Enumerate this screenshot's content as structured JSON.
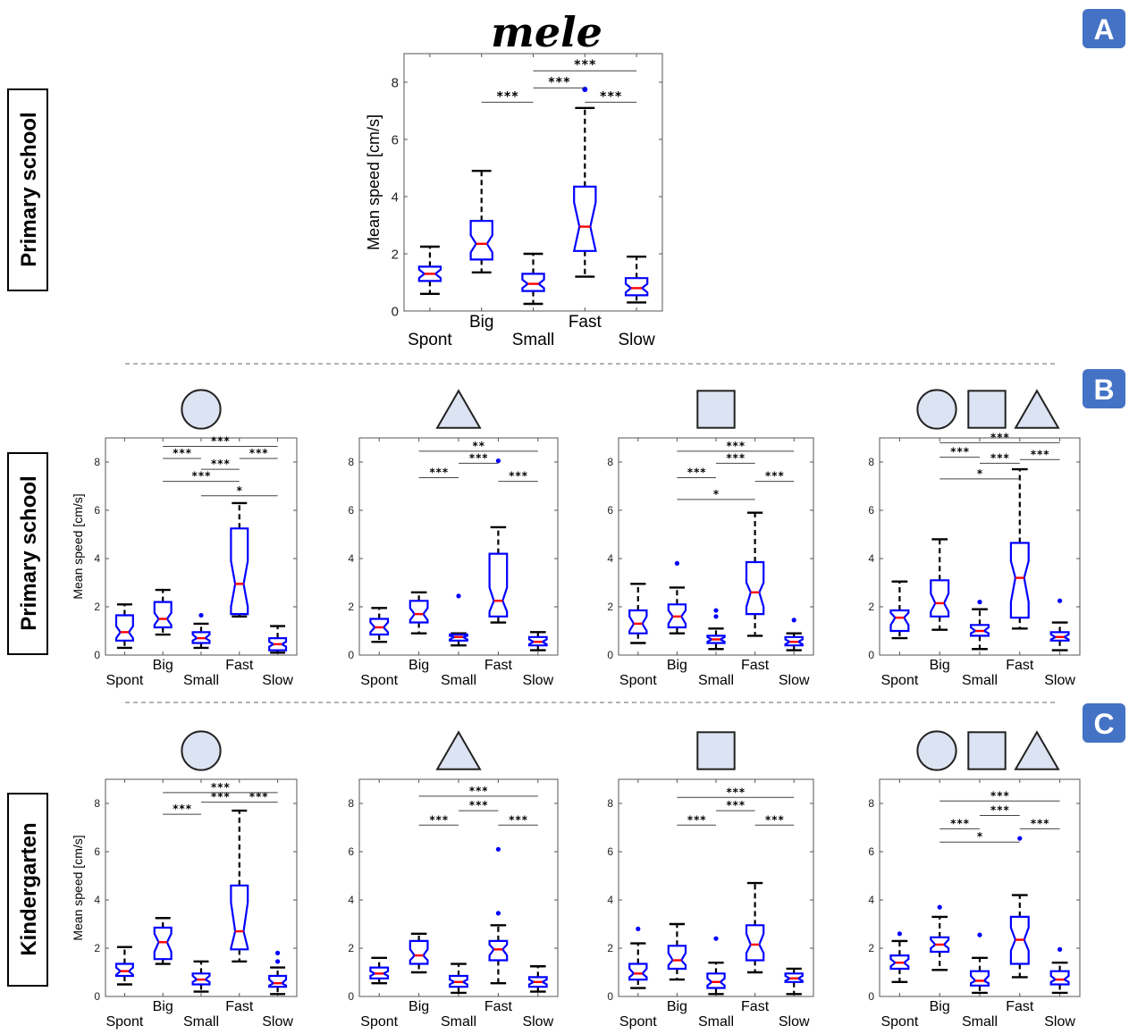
{
  "panels": {
    "a": "A",
    "b": "B",
    "c": "C"
  },
  "row_labels": {
    "primary_a": "Primary school",
    "primary_b": "Primary school",
    "kindergarten": "Kindergarten"
  },
  "colors": {
    "box": "#0000ff",
    "median": "#ff0000",
    "whisker": "#000000",
    "outlier": "#0000ff",
    "shape_fill": "#dce3f2",
    "badge": "#4472c4"
  },
  "chart_data": [
    {
      "id": "A",
      "type": "boxplot",
      "title": "mele",
      "title_shapes": [],
      "ylabel": "Mean speed [cm/s]",
      "ylim": [
        0,
        9
      ],
      "yticks": [
        0,
        2,
        4,
        6,
        8
      ],
      "categories": [
        "Spont",
        "Big",
        "Small",
        "Fast",
        "Slow"
      ],
      "boxes": [
        {
          "q1": 1.05,
          "med": 1.3,
          "q3": 1.55,
          "lo": 0.6,
          "hi": 2.25,
          "nlo": 1.15,
          "nhi": 1.45,
          "out": []
        },
        {
          "q1": 1.8,
          "med": 2.35,
          "q3": 3.15,
          "lo": 1.35,
          "hi": 4.9,
          "nlo": 2.05,
          "nhi": 2.65,
          "out": []
        },
        {
          "q1": 0.7,
          "med": 0.95,
          "q3": 1.3,
          "lo": 0.25,
          "hi": 2.0,
          "nlo": 0.8,
          "nhi": 1.1,
          "out": []
        },
        {
          "q1": 2.1,
          "med": 2.95,
          "q3": 4.35,
          "lo": 1.2,
          "hi": 7.1,
          "nlo": 2.1,
          "nhi": 3.8,
          "out": [
            7.75
          ]
        },
        {
          "q1": 0.55,
          "med": 0.8,
          "q3": 1.15,
          "lo": 0.3,
          "hi": 1.9,
          "nlo": 0.65,
          "nhi": 0.95,
          "out": []
        }
      ],
      "sig": [
        {
          "a": 3,
          "b": 5,
          "y": 8.4,
          "label": "***"
        },
        {
          "a": 3,
          "b": 4,
          "y": 7.8,
          "label": "***"
        },
        {
          "a": 2,
          "b": 3,
          "y": 7.3,
          "label": "***"
        },
        {
          "a": 4,
          "b": 5,
          "y": 7.3,
          "label": "***"
        }
      ]
    },
    {
      "id": "B1",
      "type": "boxplot",
      "title": "",
      "title_shapes": [
        "circle"
      ],
      "ylabel": "Mean speed [cm/s]",
      "ylim": [
        0,
        9
      ],
      "yticks": [
        0,
        2,
        4,
        6,
        8
      ],
      "categories": [
        "Spont",
        "Big",
        "Small",
        "Fast",
        "Slow"
      ],
      "boxes": [
        {
          "q1": 0.6,
          "med": 0.95,
          "q3": 1.65,
          "lo": 0.3,
          "hi": 2.1,
          "nlo": 0.7,
          "nhi": 1.2,
          "out": []
        },
        {
          "q1": 1.15,
          "med": 1.5,
          "q3": 2.2,
          "lo": 0.85,
          "hi": 2.7,
          "nlo": 1.25,
          "nhi": 1.75,
          "out": []
        },
        {
          "q1": 0.5,
          "med": 0.7,
          "q3": 0.95,
          "lo": 0.3,
          "hi": 1.3,
          "nlo": 0.6,
          "nhi": 0.85,
          "out": [
            1.65
          ]
        },
        {
          "q1": 1.7,
          "med": 2.95,
          "q3": 5.25,
          "lo": 1.6,
          "hi": 6.3,
          "nlo": 2.0,
          "nhi": 3.9,
          "out": []
        },
        {
          "q1": 0.2,
          "med": 0.45,
          "q3": 0.7,
          "lo": 0.1,
          "hi": 1.2,
          "nlo": 0.35,
          "nhi": 0.55,
          "out": []
        }
      ],
      "sig": [
        {
          "a": 2,
          "b": 5,
          "y": 8.65,
          "label": "***"
        },
        {
          "a": 2,
          "b": 3,
          "y": 8.15,
          "label": "***"
        },
        {
          "a": 3,
          "b": 4,
          "y": 7.7,
          "label": "***"
        },
        {
          "a": 4,
          "b": 5,
          "y": 8.15,
          "label": "***"
        },
        {
          "a": 2,
          "b": 4,
          "y": 7.2,
          "label": "***"
        },
        {
          "a": 3,
          "b": 5,
          "y": 6.6,
          "label": "*"
        }
      ]
    },
    {
      "id": "B2",
      "type": "boxplot",
      "title": "",
      "title_shapes": [
        "triangle"
      ],
      "ylabel": "",
      "ylim": [
        0,
        9
      ],
      "yticks": [
        0,
        2,
        4,
        6,
        8
      ],
      "categories": [
        "Spont",
        "Big",
        "Small",
        "Fast",
        "Slow"
      ],
      "boxes": [
        {
          "q1": 0.85,
          "med": 1.15,
          "q3": 1.5,
          "lo": 0.55,
          "hi": 1.95,
          "nlo": 0.95,
          "nhi": 1.35,
          "out": []
        },
        {
          "q1": 1.35,
          "med": 1.7,
          "q3": 2.25,
          "lo": 0.9,
          "hi": 2.6,
          "nlo": 1.45,
          "nhi": 1.95,
          "out": []
        },
        {
          "q1": 0.6,
          "med": 0.75,
          "q3": 0.85,
          "lo": 0.4,
          "hi": 0.9,
          "nlo": 0.65,
          "nhi": 0.8,
          "out": [
            2.45
          ]
        },
        {
          "q1": 1.6,
          "med": 2.25,
          "q3": 4.2,
          "lo": 1.35,
          "hi": 5.3,
          "nlo": 1.8,
          "nhi": 2.8,
          "out": [
            8.05
          ]
        },
        {
          "q1": 0.4,
          "med": 0.55,
          "q3": 0.75,
          "lo": 0.2,
          "hi": 0.95,
          "nlo": 0.45,
          "nhi": 0.65,
          "out": []
        }
      ],
      "sig": [
        {
          "a": 2,
          "b": 5,
          "y": 8.45,
          "label": "**"
        },
        {
          "a": 3,
          "b": 4,
          "y": 7.95,
          "label": "***"
        },
        {
          "a": 2,
          "b": 3,
          "y": 7.35,
          "label": "***"
        },
        {
          "a": 4,
          "b": 5,
          "y": 7.2,
          "label": "***"
        }
      ]
    },
    {
      "id": "B3",
      "type": "boxplot",
      "title": "",
      "title_shapes": [
        "square"
      ],
      "ylabel": "",
      "ylim": [
        0,
        9
      ],
      "yticks": [
        0,
        2,
        4,
        6,
        8
      ],
      "categories": [
        "Spont",
        "Big",
        "Small",
        "Fast",
        "Slow"
      ],
      "boxes": [
        {
          "q1": 0.9,
          "med": 1.3,
          "q3": 1.85,
          "lo": 0.5,
          "hi": 2.95,
          "nlo": 1.0,
          "nhi": 1.6,
          "out": []
        },
        {
          "q1": 1.15,
          "med": 1.6,
          "q3": 2.1,
          "lo": 0.9,
          "hi": 2.8,
          "nlo": 1.3,
          "nhi": 1.85,
          "out": [
            3.8
          ]
        },
        {
          "q1": 0.5,
          "med": 0.65,
          "q3": 0.8,
          "lo": 0.25,
          "hi": 1.1,
          "nlo": 0.55,
          "nhi": 0.75,
          "out": [
            1.6,
            1.85
          ]
        },
        {
          "q1": 1.7,
          "med": 2.6,
          "q3": 3.85,
          "lo": 0.8,
          "hi": 5.9,
          "nlo": 2.0,
          "nhi": 3.0,
          "out": []
        },
        {
          "q1": 0.4,
          "med": 0.55,
          "q3": 0.75,
          "lo": 0.2,
          "hi": 0.9,
          "nlo": 0.45,
          "nhi": 0.65,
          "out": [
            1.45
          ]
        }
      ],
      "sig": [
        {
          "a": 2,
          "b": 5,
          "y": 8.45,
          "label": "***"
        },
        {
          "a": 3,
          "b": 4,
          "y": 7.95,
          "label": "***"
        },
        {
          "a": 2,
          "b": 3,
          "y": 7.35,
          "label": "***"
        },
        {
          "a": 4,
          "b": 5,
          "y": 7.2,
          "label": "***"
        },
        {
          "a": 2,
          "b": 4,
          "y": 6.45,
          "label": "*"
        }
      ]
    },
    {
      "id": "B4",
      "type": "boxplot",
      "title": "",
      "title_shapes": [
        "circle",
        "square",
        "triangle"
      ],
      "ylabel": "",
      "ylim": [
        0,
        9
      ],
      "yticks": [
        0,
        2,
        4,
        6,
        8
      ],
      "categories": [
        "Spont",
        "Big",
        "Small",
        "Fast",
        "Slow"
      ],
      "boxes": [
        {
          "q1": 1.0,
          "med": 1.55,
          "q3": 1.85,
          "lo": 0.7,
          "hi": 3.05,
          "nlo": 1.25,
          "nhi": 1.75,
          "out": []
        },
        {
          "q1": 1.6,
          "med": 2.15,
          "q3": 3.1,
          "lo": 1.05,
          "hi": 4.8,
          "nlo": 1.8,
          "nhi": 2.55,
          "out": []
        },
        {
          "q1": 0.8,
          "med": 1.0,
          "q3": 1.25,
          "lo": 0.25,
          "hi": 1.9,
          "nlo": 0.9,
          "nhi": 1.15,
          "out": [
            2.2
          ]
        },
        {
          "q1": 1.55,
          "med": 3.2,
          "q3": 4.65,
          "lo": 1.1,
          "hi": 7.7,
          "nlo": 2.2,
          "nhi": 3.9,
          "out": []
        },
        {
          "q1": 0.6,
          "med": 0.75,
          "q3": 0.95,
          "lo": 0.2,
          "hi": 1.35,
          "nlo": 0.65,
          "nhi": 0.85,
          "out": [
            2.25
          ]
        }
      ],
      "sig": [
        {
          "a": 2,
          "b": 5,
          "y": 8.8,
          "label": "***"
        },
        {
          "a": 2,
          "b": 3,
          "y": 8.2,
          "label": "***"
        },
        {
          "a": 3,
          "b": 4,
          "y": 7.95,
          "label": "***"
        },
        {
          "a": 4,
          "b": 5,
          "y": 8.1,
          "label": "***"
        },
        {
          "a": 2,
          "b": 4,
          "y": 7.3,
          "label": "*"
        }
      ]
    },
    {
      "id": "C1",
      "type": "boxplot",
      "title": "",
      "title_shapes": [
        "circle"
      ],
      "ylabel": "Mean speed [cm/s]",
      "ylim": [
        0,
        9
      ],
      "yticks": [
        0,
        2,
        4,
        6,
        8
      ],
      "categories": [
        "Spont",
        "Big",
        "Small",
        "Fast",
        "Slow"
      ],
      "boxes": [
        {
          "q1": 0.85,
          "med": 1.05,
          "q3": 1.35,
          "lo": 0.5,
          "hi": 2.05,
          "nlo": 0.9,
          "nhi": 1.2,
          "out": []
        },
        {
          "q1": 1.55,
          "med": 2.25,
          "q3": 2.85,
          "lo": 1.35,
          "hi": 3.25,
          "nlo": 1.85,
          "nhi": 2.6,
          "out": []
        },
        {
          "q1": 0.5,
          "med": 0.7,
          "q3": 0.95,
          "lo": 0.2,
          "hi": 1.45,
          "nlo": 0.6,
          "nhi": 0.85,
          "out": []
        },
        {
          "q1": 1.95,
          "med": 2.7,
          "q3": 4.6,
          "lo": 1.45,
          "hi": 7.7,
          "nlo": 2.0,
          "nhi": 3.9,
          "out": []
        },
        {
          "q1": 0.4,
          "med": 0.55,
          "q3": 0.85,
          "lo": 0.1,
          "hi": 1.2,
          "nlo": 0.45,
          "nhi": 0.7,
          "out": [
            1.45,
            1.8
          ]
        }
      ],
      "sig": [
        {
          "a": 2,
          "b": 5,
          "y": 8.45,
          "label": "***"
        },
        {
          "a": 3,
          "b": 4,
          "y": 8.05,
          "label": "***"
        },
        {
          "a": 4,
          "b": 5,
          "y": 8.05,
          "label": "***"
        },
        {
          "a": 2,
          "b": 3,
          "y": 7.55,
          "label": "***"
        }
      ]
    },
    {
      "id": "C2",
      "type": "boxplot",
      "title": "",
      "title_shapes": [
        "triangle"
      ],
      "ylabel": "",
      "ylim": [
        0,
        9
      ],
      "yticks": [
        0,
        2,
        4,
        6,
        8
      ],
      "categories": [
        "Spont",
        "Big",
        "Small",
        "Fast",
        "Slow"
      ],
      "boxes": [
        {
          "q1": 0.75,
          "med": 0.95,
          "q3": 1.2,
          "lo": 0.55,
          "hi": 1.6,
          "nlo": 0.85,
          "nhi": 1.05,
          "out": []
        },
        {
          "q1": 1.35,
          "med": 1.7,
          "q3": 2.3,
          "lo": 1.0,
          "hi": 2.6,
          "nlo": 1.5,
          "nhi": 1.95,
          "out": []
        },
        {
          "q1": 0.4,
          "med": 0.6,
          "q3": 0.85,
          "lo": 0.15,
          "hi": 1.35,
          "nlo": 0.5,
          "nhi": 0.7,
          "out": []
        },
        {
          "q1": 1.5,
          "med": 1.95,
          "q3": 2.3,
          "lo": 0.55,
          "hi": 2.95,
          "nlo": 1.7,
          "nhi": 2.15,
          "out": [
            3.45,
            6.1
          ]
        },
        {
          "q1": 0.4,
          "med": 0.6,
          "q3": 0.8,
          "lo": 0.2,
          "hi": 1.25,
          "nlo": 0.5,
          "nhi": 0.7,
          "out": []
        }
      ],
      "sig": [
        {
          "a": 2,
          "b": 5,
          "y": 8.3,
          "label": "***"
        },
        {
          "a": 3,
          "b": 4,
          "y": 7.7,
          "label": "***"
        },
        {
          "a": 2,
          "b": 3,
          "y": 7.1,
          "label": "***"
        },
        {
          "a": 4,
          "b": 5,
          "y": 7.1,
          "label": "***"
        }
      ]
    },
    {
      "id": "C3",
      "type": "boxplot",
      "title": "",
      "title_shapes": [
        "square"
      ],
      "ylabel": "",
      "ylim": [
        0,
        9
      ],
      "yticks": [
        0,
        2,
        4,
        6,
        8
      ],
      "categories": [
        "Spont",
        "Big",
        "Small",
        "Fast",
        "Slow"
      ],
      "boxes": [
        {
          "q1": 0.7,
          "med": 0.95,
          "q3": 1.35,
          "lo": 0.35,
          "hi": 2.2,
          "nlo": 0.8,
          "nhi": 1.15,
          "out": [
            2.8
          ]
        },
        {
          "q1": 1.15,
          "med": 1.5,
          "q3": 2.1,
          "lo": 0.7,
          "hi": 3.0,
          "nlo": 1.3,
          "nhi": 1.8,
          "out": []
        },
        {
          "q1": 0.35,
          "med": 0.6,
          "q3": 0.95,
          "lo": 0.1,
          "hi": 1.4,
          "nlo": 0.45,
          "nhi": 0.75,
          "out": [
            2.4
          ]
        },
        {
          "q1": 1.5,
          "med": 2.15,
          "q3": 2.95,
          "lo": 1.0,
          "hi": 4.7,
          "nlo": 1.8,
          "nhi": 2.6,
          "out": []
        },
        {
          "q1": 0.6,
          "med": 0.75,
          "q3": 0.95,
          "lo": 0.1,
          "hi": 1.15,
          "nlo": 0.65,
          "nhi": 0.85,
          "out": []
        }
      ],
      "sig": [
        {
          "a": 2,
          "b": 5,
          "y": 8.25,
          "label": "***"
        },
        {
          "a": 3,
          "b": 4,
          "y": 7.7,
          "label": "***"
        },
        {
          "a": 2,
          "b": 3,
          "y": 7.1,
          "label": "***"
        },
        {
          "a": 4,
          "b": 5,
          "y": 7.1,
          "label": "***"
        }
      ]
    },
    {
      "id": "C4",
      "type": "boxplot",
      "title": "",
      "title_shapes": [
        "circle",
        "square",
        "triangle"
      ],
      "ylabel": "",
      "ylim": [
        0,
        9
      ],
      "yticks": [
        0,
        2,
        4,
        6,
        8
      ],
      "categories": [
        "Spont",
        "Big",
        "Small",
        "Fast",
        "Slow"
      ],
      "boxes": [
        {
          "q1": 1.15,
          "med": 1.4,
          "q3": 1.7,
          "lo": 0.6,
          "hi": 2.3,
          "nlo": 1.25,
          "nhi": 1.55,
          "out": [
            2.6
          ]
        },
        {
          "q1": 1.85,
          "med": 2.15,
          "q3": 2.45,
          "lo": 1.1,
          "hi": 3.3,
          "nlo": 2.0,
          "nhi": 2.35,
          "out": [
            3.7
          ]
        },
        {
          "q1": 0.45,
          "med": 0.65,
          "q3": 1.05,
          "lo": 0.15,
          "hi": 1.6,
          "nlo": 0.55,
          "nhi": 0.85,
          "out": [
            2.55
          ]
        },
        {
          "q1": 1.35,
          "med": 2.35,
          "q3": 3.3,
          "lo": 0.8,
          "hi": 4.2,
          "nlo": 1.9,
          "nhi": 2.85,
          "out": [
            6.55
          ]
        },
        {
          "q1": 0.5,
          "med": 0.7,
          "q3": 1.05,
          "lo": 0.15,
          "hi": 1.4,
          "nlo": 0.6,
          "nhi": 0.85,
          "out": [
            1.95
          ]
        }
      ],
      "sig": [
        {
          "a": 2,
          "b": 5,
          "y": 8.1,
          "label": "***"
        },
        {
          "a": 3,
          "b": 4,
          "y": 7.5,
          "label": "***"
        },
        {
          "a": 2,
          "b": 3,
          "y": 6.95,
          "label": "***"
        },
        {
          "a": 4,
          "b": 5,
          "y": 6.95,
          "label": "***"
        },
        {
          "a": 2,
          "b": 4,
          "y": 6.4,
          "label": "*"
        }
      ]
    }
  ]
}
